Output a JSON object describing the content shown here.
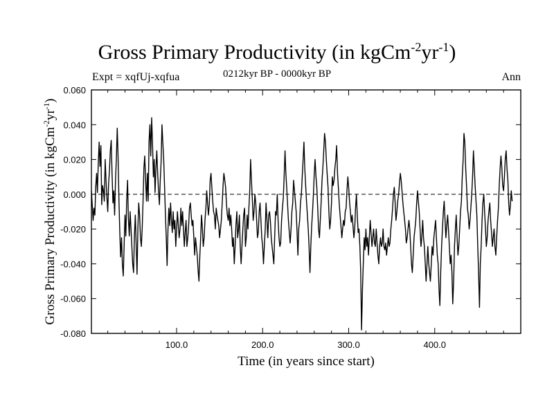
{
  "chart_data": {
    "type": "line",
    "title": "Gross Primary Productivity (in kgCm",
    "title_sup1": "-2",
    "title_mid": "yr",
    "title_sup2": "-1",
    "title_end": ")",
    "subtitle": "0212kyr BP - 0000kyr BP",
    "expt_label": "Expt = xqfUj-xqfua",
    "season_label": "Ann",
    "xlabel": "Time (in years since start)",
    "ylabel": "Gross Primary Productivity (in kgCm",
    "ylabel_sup1": "-2",
    "ylabel_mid": "yr",
    "ylabel_sup2": "-1",
    "ylabel_end": ")",
    "xlim": [
      1,
      500
    ],
    "ylim": [
      -0.08,
      0.06
    ],
    "xticks": [
      100,
      200,
      300,
      400
    ],
    "xtick_labels": [
      "100.0",
      "200.0",
      "300.0",
      "400.0"
    ],
    "yticks": [
      0.06,
      0.04,
      0.02,
      0.0,
      -0.02,
      -0.04,
      -0.06,
      -0.08
    ],
    "ytick_labels": [
      "0.060",
      "0.040",
      "0.020",
      "0.000",
      "-0.020",
      "-0.040",
      "-0.060",
      "-0.080"
    ],
    "reference_line": 0.0,
    "series": [
      {
        "name": "xqfUj-xqfua",
        "x_start": 1,
        "x_step": 1,
        "values": [
          0.002,
          -0.006,
          -0.015,
          -0.008,
          -0.012,
          0.004,
          0.012,
          0.001,
          0.018,
          0.03,
          0.016,
          0.028,
          -0.006,
          0.005,
          0.002,
          -0.004,
          0.02,
          0.008,
          -0.002,
          -0.01,
          0.006,
          0.014,
          0.025,
          0.031,
          0.012,
          -0.005,
          0.002,
          -0.012,
          0.008,
          0.02,
          0.038,
          0.022,
          -0.004,
          -0.022,
          -0.036,
          -0.025,
          -0.04,
          -0.047,
          -0.03,
          -0.012,
          -0.024,
          -0.004,
          0.008,
          -0.014,
          -0.024,
          -0.01,
          -0.02,
          -0.03,
          -0.04,
          -0.045,
          -0.024,
          -0.012,
          -0.028,
          -0.046,
          -0.02,
          -0.005,
          -0.012,
          -0.025,
          -0.03,
          -0.02,
          -0.005,
          0.015,
          0.022,
          0.008,
          -0.004,
          0.012,
          -0.004,
          0.03,
          0.04,
          0.022,
          0.044,
          0.03,
          0.01,
          0.02,
          0.001,
          0.015,
          0.025,
          0.012,
          0.002,
          -0.006,
          0.008,
          0.018,
          0.04,
          0.03,
          0.02,
          0.005,
          -0.012,
          -0.025,
          -0.041,
          -0.02,
          -0.008,
          -0.018,
          -0.005,
          -0.015,
          -0.022,
          -0.01,
          -0.02,
          -0.015,
          -0.03,
          -0.02,
          -0.01,
          -0.018,
          -0.025,
          -0.02,
          -0.008,
          -0.018,
          -0.01,
          -0.02,
          -0.03,
          -0.022,
          -0.015,
          -0.03,
          -0.025,
          -0.018,
          -0.008,
          -0.005,
          -0.012,
          -0.018,
          -0.015,
          -0.025,
          -0.035,
          -0.025,
          -0.03,
          -0.035,
          -0.044,
          -0.05,
          -0.035,
          -0.025,
          -0.012,
          -0.02,
          -0.03,
          -0.025,
          -0.015,
          -0.008,
          0.002,
          -0.005,
          -0.012,
          -0.006,
          0.008,
          0.012,
          0.004,
          -0.004,
          -0.01,
          -0.012,
          -0.02,
          -0.008,
          -0.012,
          -0.015,
          -0.018,
          -0.025,
          -0.02,
          -0.015,
          -0.005,
          0.005,
          0.012,
          0.008,
          0.004,
          -0.006,
          -0.012,
          -0.015,
          -0.008,
          -0.018,
          -0.012,
          -0.02,
          -0.03,
          -0.025,
          -0.04,
          -0.03,
          -0.018,
          -0.01,
          -0.025,
          -0.02,
          -0.012,
          -0.03,
          -0.04,
          -0.03,
          -0.02,
          -0.012,
          -0.008,
          -0.03,
          -0.025,
          -0.012,
          -0.02,
          -0.008,
          0.002,
          0.02,
          0.008,
          -0.002,
          -0.015,
          -0.01,
          0.0,
          -0.005,
          -0.015,
          -0.025,
          -0.022,
          -0.01,
          -0.005,
          -0.015,
          -0.025,
          -0.03,
          -0.04,
          -0.03,
          -0.02,
          -0.005,
          -0.015,
          -0.025,
          -0.012,
          -0.01,
          -0.015,
          -0.025,
          -0.03,
          -0.035,
          -0.04,
          -0.025,
          -0.01,
          -0.012,
          0.0,
          -0.015,
          -0.025,
          -0.03,
          -0.028,
          -0.015,
          -0.008,
          -0.002,
          0.01,
          0.025,
          0.012,
          0.004,
          -0.006,
          -0.015,
          -0.022,
          -0.028,
          -0.02,
          -0.01,
          -0.005,
          0.008,
          0.002,
          -0.004,
          -0.01,
          -0.022,
          -0.035,
          -0.02,
          -0.015,
          -0.005,
          0.0,
          0.01,
          0.02,
          0.03,
          0.015,
          0.005,
          -0.004,
          -0.012,
          -0.02,
          -0.03,
          -0.045,
          -0.03,
          -0.018,
          -0.01,
          0.0,
          0.012,
          0.02,
          0.01,
          0.004,
          -0.008,
          -0.02,
          -0.025,
          -0.015,
          -0.005,
          0.008,
          0.015,
          0.025,
          0.035,
          0.03,
          0.02,
          0.012,
          0.004,
          -0.01,
          -0.02,
          -0.015,
          -0.005,
          0.01,
          0.005,
          0.008,
          0.015,
          0.02,
          0.028,
          0.012,
          0.004,
          -0.005,
          -0.012,
          -0.018,
          -0.025,
          -0.02,
          -0.015,
          -0.018,
          -0.01,
          -0.008,
          0.002,
          0.01,
          0.004,
          -0.004,
          -0.01,
          -0.016,
          -0.012,
          -0.018,
          -0.025,
          -0.02,
          -0.008,
          0.0,
          -0.012,
          -0.022,
          -0.02,
          -0.03,
          -0.045,
          -0.078,
          -0.055,
          -0.04,
          -0.025,
          -0.032,
          -0.02,
          -0.03,
          -0.025,
          -0.035,
          -0.025,
          -0.015,
          -0.022,
          -0.03,
          -0.025,
          -0.02,
          -0.028,
          -0.03,
          -0.02,
          -0.028,
          -0.035,
          -0.04,
          -0.03,
          -0.025,
          -0.03,
          -0.028,
          -0.02,
          -0.03,
          -0.032,
          -0.028,
          -0.035,
          -0.03,
          -0.025,
          -0.03,
          -0.028,
          -0.02,
          -0.015,
          -0.008,
          0.0,
          0.004,
          -0.005,
          -0.015,
          -0.01,
          -0.004,
          0.0,
          0.006,
          0.012,
          0.008,
          0.002,
          -0.005,
          -0.01,
          -0.015,
          -0.02,
          -0.028,
          -0.025,
          -0.02,
          -0.015,
          -0.02,
          -0.03,
          -0.04,
          -0.045,
          -0.035,
          -0.025,
          -0.02,
          -0.015,
          -0.005,
          0.002,
          -0.004,
          -0.01,
          -0.02,
          -0.03,
          -0.025,
          -0.015,
          -0.025,
          -0.03,
          -0.04,
          -0.05,
          -0.04,
          -0.03,
          -0.04,
          -0.045,
          -0.05,
          -0.04,
          -0.03,
          -0.035,
          -0.025,
          -0.02,
          -0.015,
          -0.025,
          -0.035,
          -0.04,
          -0.055,
          -0.064,
          -0.045,
          -0.03,
          -0.02,
          -0.01,
          -0.004,
          -0.015,
          -0.025,
          -0.018,
          -0.012,
          -0.02,
          -0.03,
          -0.04,
          -0.035,
          -0.045,
          -0.063,
          -0.05,
          -0.03,
          -0.02,
          -0.012,
          -0.025,
          -0.035,
          -0.03,
          -0.02,
          -0.01,
          -0.004,
          0.01,
          0.02,
          0.035,
          0.03,
          0.015,
          0.005,
          -0.008,
          -0.012,
          -0.02,
          -0.015,
          -0.008,
          0.0,
          0.01,
          0.025,
          0.015,
          0.005,
          -0.004,
          -0.012,
          -0.03,
          -0.045,
          -0.065,
          -0.04,
          -0.03,
          -0.015,
          -0.005,
          0.0,
          -0.01,
          -0.02,
          -0.03,
          -0.025,
          -0.015,
          -0.01,
          -0.005,
          -0.015,
          -0.022,
          -0.03,
          -0.025,
          -0.02,
          -0.03,
          -0.035,
          -0.025,
          -0.015,
          -0.008,
          0.005,
          0.015,
          0.022,
          0.015,
          0.005,
          0.002,
          0.01,
          0.02,
          0.025,
          0.015,
          0.008,
          -0.005,
          -0.012,
          -0.006,
          0.002,
          -0.004
        ]
      }
    ]
  }
}
